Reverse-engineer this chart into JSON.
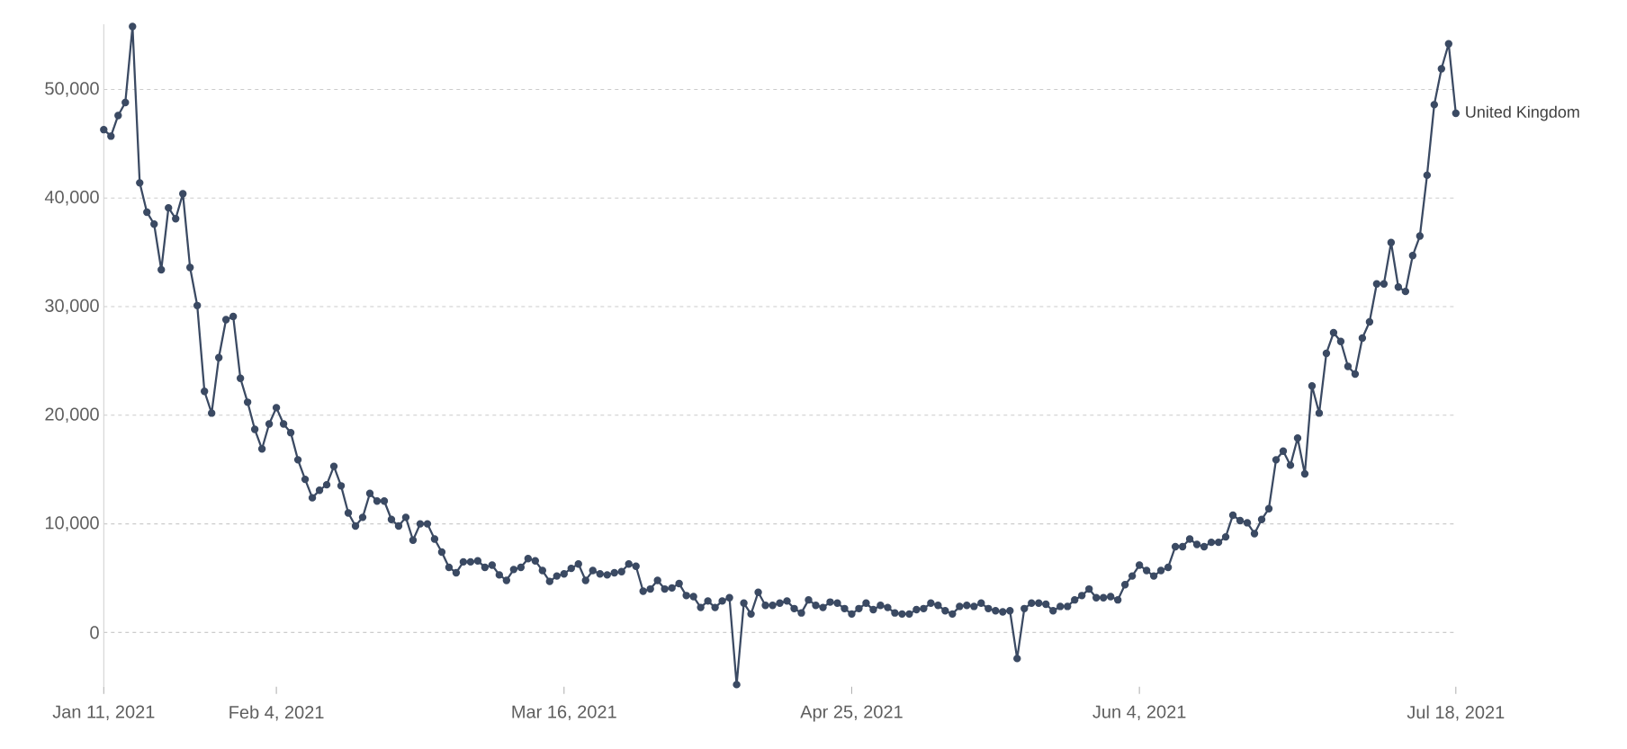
{
  "chart_data": {
    "type": "line",
    "x": [
      "2021-01-11",
      "2021-01-12",
      "2021-01-13",
      "2021-01-14",
      "2021-01-15",
      "2021-01-16",
      "2021-01-17",
      "2021-01-18",
      "2021-01-19",
      "2021-01-20",
      "2021-01-21",
      "2021-01-22",
      "2021-01-23",
      "2021-01-24",
      "2021-01-25",
      "2021-01-26",
      "2021-01-27",
      "2021-01-28",
      "2021-01-29",
      "2021-01-30",
      "2021-01-31",
      "2021-02-01",
      "2021-02-02",
      "2021-02-03",
      "2021-02-04",
      "2021-02-05",
      "2021-02-06",
      "2021-02-07",
      "2021-02-08",
      "2021-02-09",
      "2021-02-10",
      "2021-02-11",
      "2021-02-12",
      "2021-02-13",
      "2021-02-14",
      "2021-02-15",
      "2021-02-16",
      "2021-02-17",
      "2021-02-18",
      "2021-02-19",
      "2021-02-20",
      "2021-02-21",
      "2021-02-22",
      "2021-02-23",
      "2021-02-24",
      "2021-02-25",
      "2021-02-26",
      "2021-02-27",
      "2021-02-28",
      "2021-03-01",
      "2021-03-02",
      "2021-03-03",
      "2021-03-04",
      "2021-03-05",
      "2021-03-06",
      "2021-03-07",
      "2021-03-08",
      "2021-03-09",
      "2021-03-10",
      "2021-03-11",
      "2021-03-12",
      "2021-03-13",
      "2021-03-14",
      "2021-03-15",
      "2021-03-16",
      "2021-03-17",
      "2021-03-18",
      "2021-03-19",
      "2021-03-20",
      "2021-03-21",
      "2021-03-22",
      "2021-03-23",
      "2021-03-24",
      "2021-03-25",
      "2021-03-26",
      "2021-03-27",
      "2021-03-28",
      "2021-03-29",
      "2021-03-30",
      "2021-03-31",
      "2021-04-01",
      "2021-04-02",
      "2021-04-03",
      "2021-04-04",
      "2021-04-05",
      "2021-04-06",
      "2021-04-07",
      "2021-04-08",
      "2021-04-09",
      "2021-04-10",
      "2021-04-11",
      "2021-04-12",
      "2021-04-13",
      "2021-04-14",
      "2021-04-15",
      "2021-04-16",
      "2021-04-17",
      "2021-04-18",
      "2021-04-19",
      "2021-04-20",
      "2021-04-21",
      "2021-04-22",
      "2021-04-23",
      "2021-04-24",
      "2021-04-25",
      "2021-04-26",
      "2021-04-27",
      "2021-04-28",
      "2021-04-29",
      "2021-04-30",
      "2021-05-01",
      "2021-05-02",
      "2021-05-03",
      "2021-05-04",
      "2021-05-05",
      "2021-05-06",
      "2021-05-07",
      "2021-05-08",
      "2021-05-09",
      "2021-05-10",
      "2021-05-11",
      "2021-05-12",
      "2021-05-13",
      "2021-05-14",
      "2021-05-15",
      "2021-05-16",
      "2021-05-17",
      "2021-05-18",
      "2021-05-19",
      "2021-05-20",
      "2021-05-21",
      "2021-05-22",
      "2021-05-23",
      "2021-05-24",
      "2021-05-25",
      "2021-05-26",
      "2021-05-27",
      "2021-05-28",
      "2021-05-29",
      "2021-05-30",
      "2021-05-31",
      "2021-06-01",
      "2021-06-02",
      "2021-06-03",
      "2021-06-04",
      "2021-06-05",
      "2021-06-06",
      "2021-06-07",
      "2021-06-08",
      "2021-06-09",
      "2021-06-10",
      "2021-06-11",
      "2021-06-12",
      "2021-06-13",
      "2021-06-14",
      "2021-06-15",
      "2021-06-16",
      "2021-06-17",
      "2021-06-18",
      "2021-06-19",
      "2021-06-20",
      "2021-06-21",
      "2021-06-22",
      "2021-06-23",
      "2021-06-24",
      "2021-06-25",
      "2021-06-26",
      "2021-06-27",
      "2021-06-28",
      "2021-06-29",
      "2021-06-30",
      "2021-07-01",
      "2021-07-02",
      "2021-07-03",
      "2021-07-04",
      "2021-07-05",
      "2021-07-06",
      "2021-07-07",
      "2021-07-08",
      "2021-07-09",
      "2021-07-10",
      "2021-07-11",
      "2021-07-12",
      "2021-07-13",
      "2021-07-14",
      "2021-07-15",
      "2021-07-16",
      "2021-07-17",
      "2021-07-18"
    ],
    "series": [
      {
        "name": "United Kingdom",
        "color": "#3b4a63",
        "values": [
          46300,
          45700,
          47600,
          48800,
          55800,
          41400,
          38700,
          37600,
          33400,
          39100,
          38100,
          40400,
          33600,
          30100,
          22200,
          20200,
          25300,
          28800,
          29100,
          23400,
          21200,
          18700,
          16900,
          19200,
          20700,
          19200,
          18400,
          15900,
          14100,
          12400,
          13100,
          13600,
          15300,
          13500,
          11000,
          9800,
          10600,
          12800,
          12100,
          12100,
          10400,
          9800,
          10600,
          8500,
          10000,
          10000,
          8600,
          7400,
          6000,
          5500,
          6500,
          6500,
          6600,
          6000,
          6200,
          5300,
          4800,
          5800,
          6000,
          6800,
          6600,
          5700,
          4700,
          5200,
          5400,
          5900,
          6300,
          4800,
          5700,
          5400,
          5300,
          5500,
          5600,
          6300,
          6100,
          3800,
          4000,
          4800,
          4000,
          4100,
          4500,
          3400,
          3300,
          2300,
          2900,
          2300,
          2900,
          3200,
          -4800,
          2700,
          1700,
          3700,
          2500,
          2500,
          2700,
          2900,
          2200,
          1800,
          3000,
          2500,
          2300,
          2800,
          2700,
          2200,
          1700,
          2200,
          2700,
          2100,
          2500,
          2300,
          1800,
          1700,
          1700,
          2100,
          2200,
          2700,
          2500,
          2000,
          1700,
          2400,
          2500,
          2400,
          2700,
          2200,
          2000,
          1900,
          2000,
          -2400,
          2200,
          2700,
          2700,
          2600,
          2000,
          2400,
          2400,
          3000,
          3400,
          4000,
          3200,
          3200,
          3300,
          3000,
          4400,
          5200,
          6200,
          5700,
          5200,
          5700,
          6000,
          7900,
          7900,
          8600,
          8100,
          7900,
          8300,
          8300,
          8800,
          10800,
          10300,
          10100,
          9100,
          10400,
          11400,
          15900,
          16700,
          15400,
          17900,
          14600,
          22700,
          20200,
          25700,
          27600,
          26800,
          24500,
          23800,
          27100,
          28600,
          32100,
          32100,
          35900,
          31800,
          31400,
          34700,
          36500,
          42100,
          48600,
          51900,
          54200,
          47800
        ]
      }
    ],
    "xlim": [
      "2021-01-11",
      "2021-07-18"
    ],
    "xticks": [
      {
        "value": "2021-01-11",
        "label": "Jan 11, 2021"
      },
      {
        "value": "2021-02-04",
        "label": "Feb 4, 2021"
      },
      {
        "value": "2021-03-16",
        "label": "Mar 16, 2021"
      },
      {
        "value": "2021-04-25",
        "label": "Apr 25, 2021"
      },
      {
        "value": "2021-06-04",
        "label": "Jun 4, 2021"
      },
      {
        "value": "2021-07-18",
        "label": "Jul 18, 2021"
      }
    ],
    "ylim": [
      -5000,
      56000
    ],
    "yticks": [
      {
        "value": 0,
        "label": "0"
      },
      {
        "value": 10000,
        "label": "10,000"
      },
      {
        "value": 20000,
        "label": "20,000"
      },
      {
        "value": 30000,
        "label": "30,000"
      },
      {
        "value": 40000,
        "label": "40,000"
      },
      {
        "value": 50000,
        "label": "50,000"
      }
    ],
    "grid": "y",
    "marker": "circle",
    "line_style": "solid",
    "legend": false
  }
}
